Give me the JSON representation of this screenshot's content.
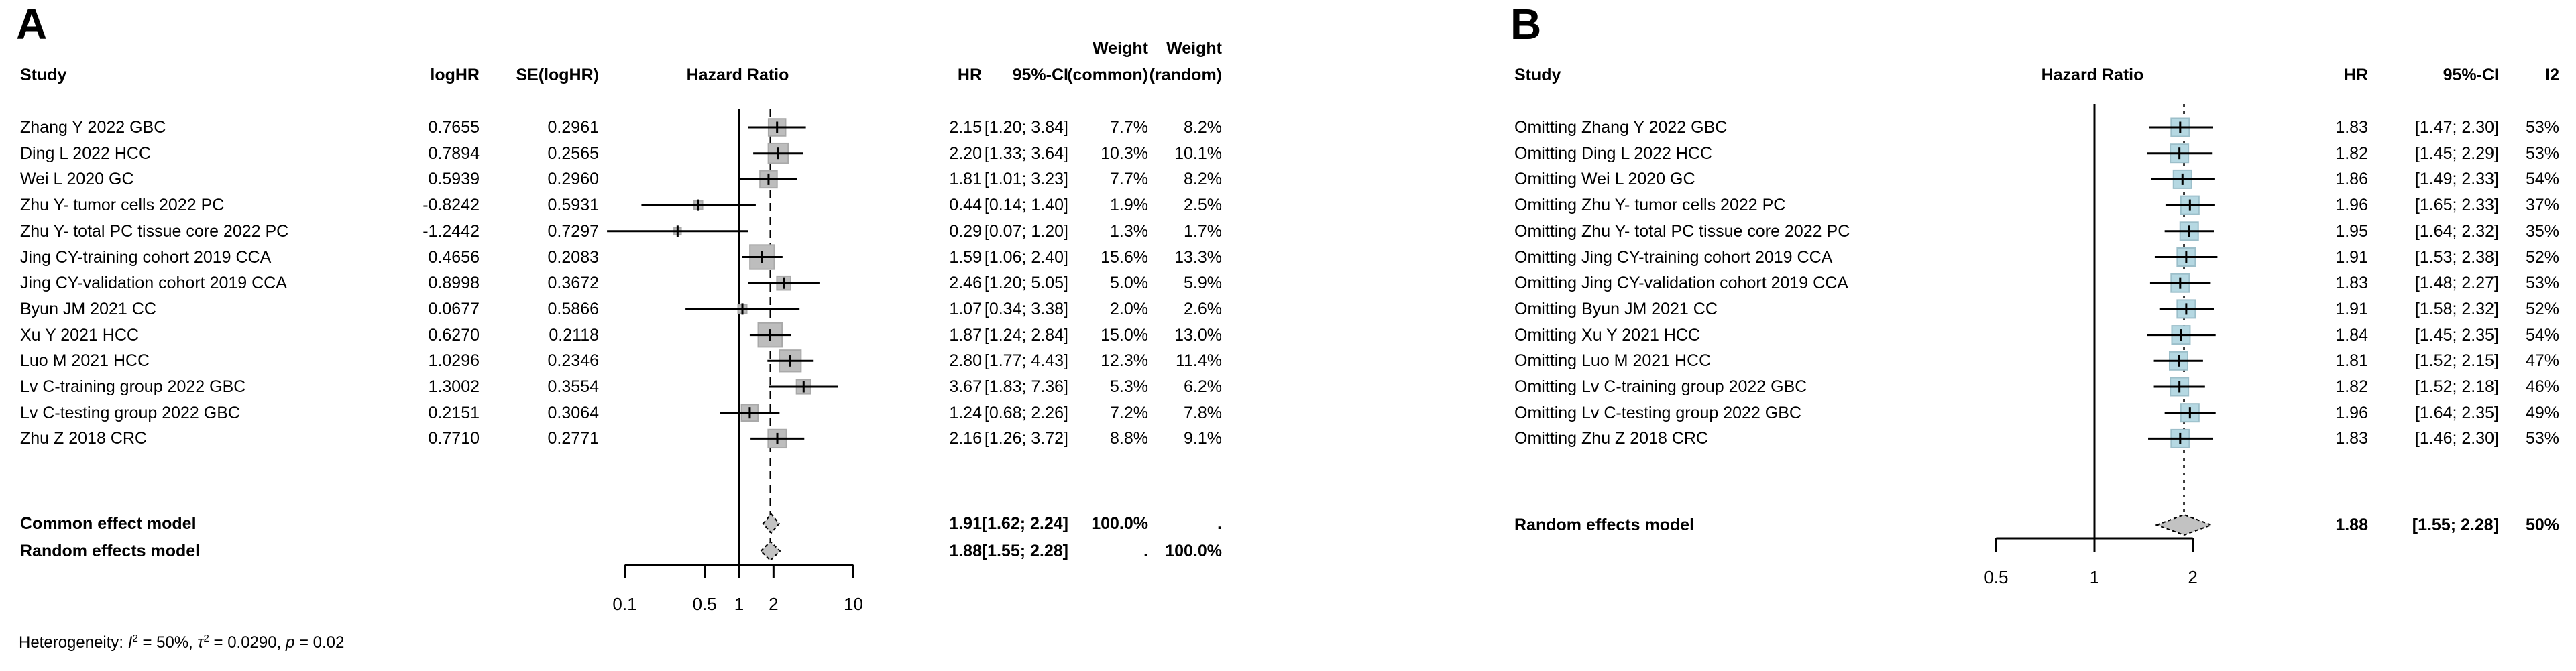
{
  "colors": {
    "square_a_fill": "#bdbdbd",
    "square_a_border": "#a9a9a9",
    "square_b_fill": "#b5d8e2",
    "square_b_border": "#9cbfca",
    "diamond_fill": "#c2c2c2",
    "line": "#000000"
  },
  "chart_data": [
    {
      "type": "forest",
      "panel_label": "A",
      "title": "Hazard Ratio",
      "scale": "log",
      "axis_ticks": [
        0.1,
        0.5,
        1,
        2,
        10
      ],
      "ref_line": 1,
      "pooled_dashed_line": 1.88,
      "col_headers": {
        "study": "Study",
        "loghr": "logHR",
        "se": "SE(logHR)",
        "hr": "HR",
        "ci": "95%-CI",
        "weight1_top": "Weight",
        "weight1_bottom": "(common)",
        "weight2_top": "Weight",
        "weight2_bottom": "(random)"
      },
      "studies": [
        {
          "study": "Zhang Y 2022 GBC",
          "loghr": "0.7655",
          "se": "0.2961",
          "hr": 2.15,
          "lo": 1.2,
          "hi": 3.84,
          "hr_text": "2.15",
          "ci_text": "[1.20; 3.84]",
          "w_common": "7.7%",
          "w_random": "8.2%",
          "w_common_val": 7.7
        },
        {
          "study": "Ding L 2022 HCC",
          "loghr": "0.7894",
          "se": "0.2565",
          "hr": 2.2,
          "lo": 1.33,
          "hi": 3.64,
          "hr_text": "2.20",
          "ci_text": "[1.33; 3.64]",
          "w_common": "10.3%",
          "w_random": "10.1%",
          "w_common_val": 10.3
        },
        {
          "study": "Wei L 2020 GC",
          "loghr": "0.5939",
          "se": "0.2960",
          "hr": 1.81,
          "lo": 1.01,
          "hi": 3.23,
          "hr_text": "1.81",
          "ci_text": "[1.01; 3.23]",
          "w_common": "7.7%",
          "w_random": "8.2%",
          "w_common_val": 7.7
        },
        {
          "study": "Zhu Y- tumor cells 2022 PC",
          "loghr": "-0.8242",
          "se": "0.5931",
          "hr": 0.44,
          "lo": 0.14,
          "hi": 1.4,
          "hr_text": "0.44",
          "ci_text": "[0.14; 1.40]",
          "w_common": "1.9%",
          "w_random": "2.5%",
          "w_common_val": 1.9
        },
        {
          "study": "Zhu Y- total PC tissue core 2022 PC",
          "loghr": "-1.2442",
          "se": "0.7297",
          "hr": 0.29,
          "lo": 0.07,
          "hi": 1.2,
          "hr_text": "0.29",
          "ci_text": "[0.07; 1.20]",
          "w_common": "1.3%",
          "w_random": "1.7%",
          "w_common_val": 1.3
        },
        {
          "study": "Jing CY-training cohort 2019 CCA",
          "loghr": "0.4656",
          "se": "0.2083",
          "hr": 1.59,
          "lo": 1.06,
          "hi": 2.4,
          "hr_text": "1.59",
          "ci_text": "[1.06; 2.40]",
          "w_common": "15.6%",
          "w_random": "13.3%",
          "w_common_val": 15.6
        },
        {
          "study": "Jing CY-validation cohort 2019 CCA",
          "loghr": "0.8998",
          "se": "0.3672",
          "hr": 2.46,
          "lo": 1.2,
          "hi": 5.05,
          "hr_text": "2.46",
          "ci_text": "[1.20; 5.05]",
          "w_common": "5.0%",
          "w_random": "5.9%",
          "w_common_val": 5.0
        },
        {
          "study": "Byun JM 2021 CC",
          "loghr": "0.0677",
          "se": "0.5866",
          "hr": 1.07,
          "lo": 0.34,
          "hi": 3.38,
          "hr_text": "1.07",
          "ci_text": "[0.34; 3.38]",
          "w_common": "2.0%",
          "w_random": "2.6%",
          "w_common_val": 2.0
        },
        {
          "study": "Xu Y 2021 HCC",
          "loghr": "0.6270",
          "se": "0.2118",
          "hr": 1.87,
          "lo": 1.24,
          "hi": 2.84,
          "hr_text": "1.87",
          "ci_text": "[1.24; 2.84]",
          "w_common": "15.0%",
          "w_random": "13.0%",
          "w_common_val": 15.0
        },
        {
          "study": "Luo M 2021 HCC",
          "loghr": "1.0296",
          "se": "0.2346",
          "hr": 2.8,
          "lo": 1.77,
          "hi": 4.43,
          "hr_text": "2.80",
          "ci_text": "[1.77; 4.43]",
          "w_common": "12.3%",
          "w_random": "11.4%",
          "w_common_val": 12.3
        },
        {
          "study": "Lv C-training group 2022 GBC",
          "loghr": "1.3002",
          "se": "0.3554",
          "hr": 3.67,
          "lo": 1.83,
          "hi": 7.36,
          "hr_text": "3.67",
          "ci_text": "[1.83; 7.36]",
          "w_common": "5.3%",
          "w_random": "6.2%",
          "w_common_val": 5.3
        },
        {
          "study": "Lv C-testing group 2022 GBC",
          "loghr": "0.2151",
          "se": "0.3064",
          "hr": 1.24,
          "lo": 0.68,
          "hi": 2.26,
          "hr_text": "1.24",
          "ci_text": "[0.68; 2.26]",
          "w_common": "7.2%",
          "w_random": "7.8%",
          "w_common_val": 7.2
        },
        {
          "study": "Zhu Z 2018 CRC",
          "loghr": "0.7710",
          "se": "0.2771",
          "hr": 2.16,
          "lo": 1.26,
          "hi": 3.72,
          "hr_text": "2.16",
          "ci_text": "[1.26; 3.72]",
          "w_common": "8.8%",
          "w_random": "9.1%",
          "w_common_val": 8.8
        }
      ],
      "summary_rows": [
        {
          "label": "Common effect model",
          "hr": 1.91,
          "lo": 1.62,
          "hi": 2.24,
          "hr_text": "1.91",
          "ci_text": "[1.62; 2.24]",
          "w_common": "100.0%",
          "w_random": "."
        },
        {
          "label": "Random effects model",
          "hr": 1.88,
          "lo": 1.55,
          "hi": 2.28,
          "hr_text": "1.88",
          "ci_text": "[1.55; 2.28]",
          "w_common": ".",
          "w_random": "100.0%"
        }
      ],
      "footnote": {
        "prefix": "Heterogeneity: ",
        "i_symbol": "I",
        "i_sup": "2",
        "i_rest": " = 50%, ",
        "tau_symbol": "τ",
        "tau_sup": "2",
        "tau_rest": " = 0.0290, ",
        "p_symbol": "p",
        "p_rest": " = 0.02"
      }
    },
    {
      "type": "forest",
      "panel_label": "B",
      "title": "Hazard Ratio",
      "scale": "log",
      "axis_ticks": [
        0.5,
        1,
        2
      ],
      "ref_line": 1,
      "pooled_dashed_line": 1.88,
      "col_headers": {
        "study": "Study",
        "hr": "HR",
        "ci": "95%-CI",
        "i2": "I2"
      },
      "studies": [
        {
          "study": "Omitting Zhang Y 2022 GBC",
          "hr": 1.83,
          "lo": 1.47,
          "hi": 2.3,
          "hr_text": "1.83",
          "ci_text": "[1.47; 2.30]",
          "i2": "53%"
        },
        {
          "study": "Omitting Ding L 2022 HCC",
          "hr": 1.82,
          "lo": 1.45,
          "hi": 2.29,
          "hr_text": "1.82",
          "ci_text": "[1.45; 2.29]",
          "i2": "53%"
        },
        {
          "study": "Omitting Wei L 2020 GC",
          "hr": 1.86,
          "lo": 1.49,
          "hi": 2.33,
          "hr_text": "1.86",
          "ci_text": "[1.49; 2.33]",
          "i2": "54%"
        },
        {
          "study": "Omitting Zhu Y- tumor cells 2022 PC",
          "hr": 1.96,
          "lo": 1.65,
          "hi": 2.33,
          "hr_text": "1.96",
          "ci_text": "[1.65; 2.33]",
          "i2": "37%"
        },
        {
          "study": "Omitting Zhu Y- total PC tissue core 2022 PC",
          "hr": 1.95,
          "lo": 1.64,
          "hi": 2.32,
          "hr_text": "1.95",
          "ci_text": "[1.64; 2.32]",
          "i2": "35%"
        },
        {
          "study": "Omitting Jing CY-training cohort 2019 CCA",
          "hr": 1.91,
          "lo": 1.53,
          "hi": 2.38,
          "hr_text": "1.91",
          "ci_text": "[1.53; 2.38]",
          "i2": "52%"
        },
        {
          "study": "Omitting Jing CY-validation cohort 2019 CCA",
          "hr": 1.83,
          "lo": 1.48,
          "hi": 2.27,
          "hr_text": "1.83",
          "ci_text": "[1.48; 2.27]",
          "i2": "53%"
        },
        {
          "study": "Omitting Byun JM 2021 CC",
          "hr": 1.91,
          "lo": 1.58,
          "hi": 2.32,
          "hr_text": "1.91",
          "ci_text": "[1.58; 2.32]",
          "i2": "52%"
        },
        {
          "study": "Omitting Xu Y 2021 HCC",
          "hr": 1.84,
          "lo": 1.45,
          "hi": 2.35,
          "hr_text": "1.84",
          "ci_text": "[1.45; 2.35]",
          "i2": "54%"
        },
        {
          "study": "Omitting Luo M 2021 HCC",
          "hr": 1.81,
          "lo": 1.52,
          "hi": 2.15,
          "hr_text": "1.81",
          "ci_text": "[1.52; 2.15]",
          "i2": "47%"
        },
        {
          "study": "Omitting Lv C-training group 2022 GBC",
          "hr": 1.82,
          "lo": 1.52,
          "hi": 2.18,
          "hr_text": "1.82",
          "ci_text": "[1.52; 2.18]",
          "i2": "46%"
        },
        {
          "study": "Omitting Lv C-testing group 2022 GBC",
          "hr": 1.96,
          "lo": 1.64,
          "hi": 2.35,
          "hr_text": "1.96",
          "ci_text": "[1.64; 2.35]",
          "i2": "49%"
        },
        {
          "study": "Omitting Zhu Z 2018 CRC",
          "hr": 1.83,
          "lo": 1.46,
          "hi": 2.3,
          "hr_text": "1.83",
          "ci_text": "[1.46; 2.30]",
          "i2": "53%"
        }
      ],
      "summary_rows": [
        {
          "label": "Random effects model",
          "hr": 1.88,
          "lo": 1.55,
          "hi": 2.28,
          "hr_text": "1.88",
          "ci_text": "[1.55; 2.28]",
          "i2": "50%"
        }
      ]
    }
  ]
}
